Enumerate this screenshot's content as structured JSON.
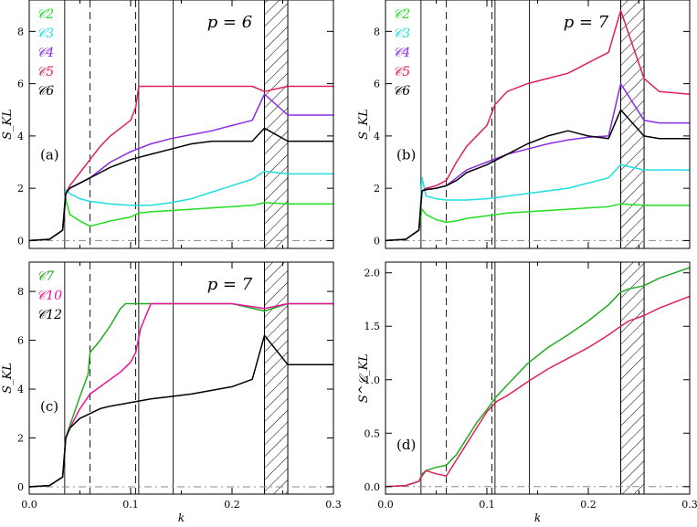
{
  "chart_data": [
    {
      "id": "a",
      "type": "line",
      "panel_label": "(a)",
      "annotation": "p = 6",
      "ylabel": "S_KL",
      "xlabel": "",
      "xlim": [
        0,
        0.3
      ],
      "ylim": [
        -0.3,
        9.2
      ],
      "x_ticks": [],
      "y_ticks": [
        "0",
        "2",
        "4",
        "6",
        "8"
      ],
      "y_tick_values": [
        0,
        2,
        4,
        6,
        8
      ],
      "legend": [
        "𝒞2",
        "𝒞3",
        "𝒞4",
        "𝒞5",
        "𝒞6"
      ],
      "series": [
        {
          "name": "𝒞2",
          "color": "#22dd22",
          "x": [
            0,
            0.02,
            0.033,
            0.036,
            0.04,
            0.05,
            0.06,
            0.07,
            0.08,
            0.1,
            0.108,
            0.12,
            0.14,
            0.16,
            0.18,
            0.2,
            0.22,
            0.232,
            0.255,
            0.27,
            0.3
          ],
          "y": [
            0,
            0.05,
            0.4,
            1.6,
            1.0,
            0.75,
            0.55,
            0.65,
            0.75,
            0.9,
            1.05,
            1.1,
            1.15,
            1.2,
            1.25,
            1.3,
            1.35,
            1.45,
            1.4,
            1.4,
            1.4
          ]
        },
        {
          "name": "𝒞3",
          "color": "#22dddd",
          "x": [
            0,
            0.02,
            0.033,
            0.036,
            0.04,
            0.05,
            0.06,
            0.07,
            0.08,
            0.1,
            0.12,
            0.14,
            0.16,
            0.18,
            0.2,
            0.22,
            0.232,
            0.255,
            0.27,
            0.3
          ],
          "y": [
            0,
            0.05,
            0.4,
            1.95,
            1.8,
            1.6,
            1.5,
            1.45,
            1.4,
            1.35,
            1.35,
            1.45,
            1.6,
            1.85,
            2.1,
            2.35,
            2.65,
            2.55,
            2.55,
            2.55
          ]
        },
        {
          "name": "𝒞4",
          "color": "#8a2be2",
          "x": [
            0,
            0.02,
            0.033,
            0.036,
            0.04,
            0.05,
            0.06,
            0.07,
            0.08,
            0.1,
            0.12,
            0.14,
            0.16,
            0.18,
            0.2,
            0.22,
            0.232,
            0.255,
            0.27,
            0.3
          ],
          "y": [
            0,
            0.05,
            0.4,
            1.8,
            2.0,
            2.2,
            2.4,
            2.7,
            3.0,
            3.4,
            3.7,
            3.9,
            4.05,
            4.2,
            4.4,
            4.6,
            5.6,
            4.8,
            4.8,
            4.8
          ]
        },
        {
          "name": "𝒞5",
          "color": "#e0205a",
          "x": [
            0,
            0.02,
            0.033,
            0.036,
            0.04,
            0.05,
            0.06,
            0.07,
            0.08,
            0.09,
            0.1,
            0.105,
            0.108,
            0.11,
            0.12,
            0.14,
            0.16,
            0.18,
            0.2,
            0.22,
            0.232,
            0.255,
            0.27,
            0.3
          ],
          "y": [
            0,
            0.05,
            0.4,
            1.8,
            2.1,
            2.6,
            3.1,
            3.6,
            4.0,
            4.3,
            4.6,
            5.1,
            5.9,
            5.9,
            5.9,
            5.9,
            5.9,
            5.9,
            5.9,
            5.9,
            5.7,
            5.9,
            5.9,
            5.9
          ]
        },
        {
          "name": "𝒞6",
          "color": "#000000",
          "x": [
            0,
            0.02,
            0.033,
            0.036,
            0.04,
            0.05,
            0.06,
            0.07,
            0.08,
            0.1,
            0.12,
            0.14,
            0.16,
            0.18,
            0.2,
            0.22,
            0.232,
            0.255,
            0.27,
            0.3
          ],
          "y": [
            0,
            0.05,
            0.4,
            1.8,
            2.0,
            2.2,
            2.4,
            2.6,
            2.8,
            3.1,
            3.3,
            3.5,
            3.7,
            3.8,
            3.8,
            3.8,
            4.3,
            3.8,
            3.8,
            3.8
          ]
        }
      ]
    },
    {
      "id": "b",
      "type": "line",
      "panel_label": "(b)",
      "annotation": "p = 7",
      "ylabel": "S_KL",
      "xlabel": "",
      "xlim": [
        0,
        0.3
      ],
      "ylim": [
        -0.3,
        9.2
      ],
      "x_ticks": [],
      "y_ticks": [
        "0",
        "2",
        "4",
        "6",
        "8"
      ],
      "y_tick_values": [
        0,
        2,
        4,
        6,
        8
      ],
      "legend": [
        "𝒞2",
        "𝒞3",
        "𝒞4",
        "𝒞5",
        "𝒞6"
      ],
      "series": [
        {
          "name": "𝒞2",
          "color": "#22dd22",
          "x": [
            0,
            0.02,
            0.033,
            0.036,
            0.04,
            0.05,
            0.06,
            0.07,
            0.08,
            0.1,
            0.12,
            0.14,
            0.16,
            0.18,
            0.2,
            0.22,
            0.232,
            0.255,
            0.27,
            0.3
          ],
          "y": [
            0,
            0.05,
            0.4,
            1.2,
            1.0,
            0.8,
            0.7,
            0.75,
            0.85,
            0.95,
            1.05,
            1.1,
            1.15,
            1.2,
            1.25,
            1.3,
            1.4,
            1.35,
            1.35,
            1.35
          ]
        },
        {
          "name": "𝒞3",
          "color": "#22dddd",
          "x": [
            0,
            0.02,
            0.033,
            0.036,
            0.04,
            0.05,
            0.06,
            0.07,
            0.08,
            0.1,
            0.12,
            0.14,
            0.16,
            0.18,
            0.2,
            0.22,
            0.232,
            0.255,
            0.27,
            0.3
          ],
          "y": [
            0,
            0.05,
            0.4,
            2.4,
            1.7,
            1.6,
            1.55,
            1.55,
            1.55,
            1.6,
            1.7,
            1.8,
            1.9,
            2.0,
            2.2,
            2.4,
            2.9,
            2.7,
            2.7,
            2.7
          ]
        },
        {
          "name": "𝒞4",
          "color": "#8a2be2",
          "x": [
            0,
            0.02,
            0.033,
            0.036,
            0.04,
            0.05,
            0.06,
            0.07,
            0.08,
            0.1,
            0.12,
            0.14,
            0.16,
            0.18,
            0.2,
            0.22,
            0.232,
            0.255,
            0.27,
            0.3
          ],
          "y": [
            0,
            0.05,
            0.4,
            1.9,
            1.95,
            2.0,
            2.1,
            2.4,
            2.7,
            3.0,
            3.3,
            3.5,
            3.7,
            3.85,
            3.95,
            4.0,
            6.0,
            4.6,
            4.5,
            4.5
          ]
        },
        {
          "name": "𝒞5",
          "color": "#e0205a",
          "x": [
            0,
            0.02,
            0.033,
            0.036,
            0.04,
            0.05,
            0.06,
            0.07,
            0.08,
            0.1,
            0.108,
            0.12,
            0.14,
            0.16,
            0.18,
            0.2,
            0.22,
            0.232,
            0.255,
            0.27,
            0.3
          ],
          "y": [
            0,
            0.05,
            0.4,
            1.9,
            2.0,
            2.1,
            2.3,
            3.0,
            3.6,
            4.4,
            5.2,
            5.7,
            6.0,
            6.2,
            6.4,
            6.8,
            7.2,
            8.8,
            6.2,
            5.7,
            5.6
          ]
        },
        {
          "name": "𝒞6",
          "color": "#000000",
          "x": [
            0,
            0.02,
            0.033,
            0.036,
            0.04,
            0.05,
            0.06,
            0.07,
            0.08,
            0.1,
            0.12,
            0.14,
            0.16,
            0.18,
            0.2,
            0.22,
            0.232,
            0.255,
            0.27,
            0.3
          ],
          "y": [
            0,
            0.05,
            0.4,
            1.9,
            1.95,
            2.0,
            2.1,
            2.3,
            2.6,
            2.9,
            3.3,
            3.7,
            4.0,
            4.2,
            4.0,
            3.9,
            5.0,
            4.0,
            3.9,
            3.9
          ]
        }
      ]
    },
    {
      "id": "c",
      "type": "line",
      "panel_label": "(c)",
      "annotation": "p = 7",
      "ylabel": "S_KL",
      "xlabel": "k",
      "xlim": [
        0,
        0.3
      ],
      "ylim": [
        -0.3,
        9.2
      ],
      "x_ticks": [
        "0.0",
        "0.1",
        "0.2",
        "0.3"
      ],
      "x_tick_values": [
        0,
        0.1,
        0.2,
        0.3
      ],
      "y_ticks": [
        "0",
        "2",
        "4",
        "6",
        "8"
      ],
      "y_tick_values": [
        0,
        2,
        4,
        6,
        8
      ],
      "legend": [
        "𝒞7",
        "𝒞10",
        "𝒞12"
      ],
      "series": [
        {
          "name": "𝒞7",
          "color": "#22aa22",
          "x": [
            0,
            0.02,
            0.033,
            0.036,
            0.04,
            0.05,
            0.058,
            0.06,
            0.07,
            0.08,
            0.09,
            0.095,
            0.1,
            0.14,
            0.2,
            0.232,
            0.255,
            0.27,
            0.3
          ],
          "y": [
            0,
            0.05,
            0.4,
            2.0,
            2.5,
            3.7,
            4.6,
            5.5,
            6.0,
            6.6,
            7.3,
            7.5,
            7.5,
            7.5,
            7.5,
            7.2,
            7.5,
            7.5,
            7.5
          ]
        },
        {
          "name": "𝒞10",
          "color": "#ee1199",
          "x": [
            0,
            0.02,
            0.033,
            0.036,
            0.04,
            0.05,
            0.06,
            0.07,
            0.08,
            0.09,
            0.1,
            0.105,
            0.11,
            0.12,
            0.14,
            0.2,
            0.232,
            0.255,
            0.27,
            0.3
          ],
          "y": [
            0,
            0.05,
            0.4,
            2.0,
            2.4,
            3.2,
            3.8,
            4.1,
            4.4,
            4.7,
            5.1,
            5.5,
            6.5,
            7.5,
            7.5,
            7.5,
            7.3,
            7.5,
            7.5,
            7.5
          ]
        },
        {
          "name": "𝒞12",
          "color": "#000000",
          "x": [
            0,
            0.02,
            0.033,
            0.036,
            0.04,
            0.05,
            0.06,
            0.07,
            0.08,
            0.1,
            0.12,
            0.14,
            0.16,
            0.18,
            0.2,
            0.22,
            0.232,
            0.255,
            0.27,
            0.3
          ],
          "y": [
            0,
            0.05,
            0.4,
            2.0,
            2.4,
            2.8,
            3.0,
            3.2,
            3.3,
            3.45,
            3.6,
            3.7,
            3.8,
            3.95,
            4.1,
            4.4,
            6.2,
            5.0,
            5.0,
            5.0
          ]
        }
      ]
    },
    {
      "id": "d",
      "type": "line",
      "panel_label": "(d)",
      "annotation": "",
      "ylabel": "S^𝒞_KL",
      "xlabel": "k",
      "xlim": [
        0,
        0.3
      ],
      "ylim": [
        -0.07,
        2.1
      ],
      "x_ticks": [
        "0.0",
        "0.1",
        "0.2",
        "0.3"
      ],
      "x_tick_values": [
        0,
        0.1,
        0.2,
        0.3
      ],
      "y_ticks": [
        "0.0",
        "0.5",
        "1.0",
        "1.5",
        "2.0"
      ],
      "y_tick_values": [
        0,
        0.5,
        1.0,
        1.5,
        2.0
      ],
      "legend": [],
      "series": [
        {
          "name": "",
          "color": "#22aa22",
          "x": [
            0,
            0.02,
            0.033,
            0.036,
            0.04,
            0.05,
            0.06,
            0.07,
            0.08,
            0.09,
            0.1,
            0.11,
            0.12,
            0.14,
            0.16,
            0.18,
            0.2,
            0.22,
            0.232,
            0.24,
            0.255,
            0.27,
            0.3
          ],
          "y": [
            0,
            0.01,
            0.05,
            0.12,
            0.15,
            0.18,
            0.2,
            0.3,
            0.45,
            0.6,
            0.72,
            0.85,
            0.95,
            1.15,
            1.3,
            1.42,
            1.55,
            1.7,
            1.82,
            1.85,
            1.88,
            1.95,
            2.05
          ]
        },
        {
          "name": "",
          "color": "#e0205a",
          "x": [
            0,
            0.02,
            0.033,
            0.036,
            0.04,
            0.05,
            0.06,
            0.07,
            0.08,
            0.09,
            0.1,
            0.11,
            0.12,
            0.14,
            0.16,
            0.18,
            0.2,
            0.22,
            0.232,
            0.24,
            0.255,
            0.27,
            0.3
          ],
          "y": [
            0,
            0.01,
            0.05,
            0.1,
            0.15,
            0.12,
            0.1,
            0.25,
            0.4,
            0.55,
            0.7,
            0.8,
            0.85,
            0.98,
            1.1,
            1.2,
            1.3,
            1.42,
            1.5,
            1.55,
            1.6,
            1.67,
            1.78
          ]
        }
      ]
    }
  ]
}
